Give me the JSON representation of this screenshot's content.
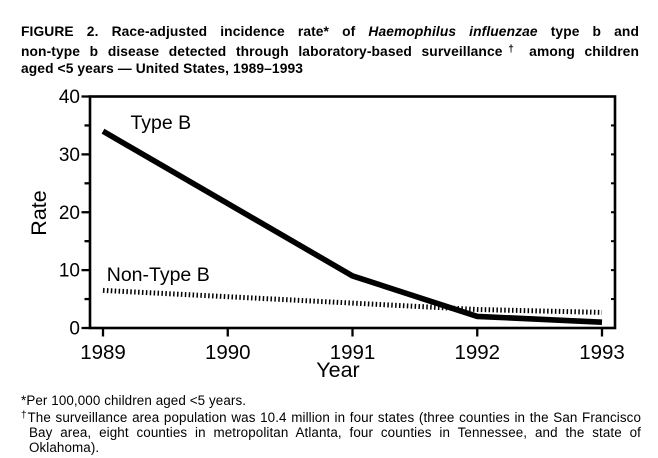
{
  "figure": {
    "title_lines": [
      [
        {
          "t": "FIGURE 2. Race-adjusted incidence rate* of "
        },
        {
          "t": "Haemophilus influenzae",
          "i": true
        },
        {
          "t": " type b and"
        }
      ],
      [
        {
          "t": "non-type b disease detected through laboratory-based surveillance"
        },
        {
          "t": "†",
          "sup": true
        },
        {
          "t": " among children"
        }
      ],
      [
        {
          "t": "aged <5 years — United States, 1989–1993"
        }
      ]
    ],
    "footnotes": [
      {
        "marker": "*",
        "sup": false,
        "text": "Per 100,000 children aged <5 years."
      },
      {
        "marker": "†",
        "sup": true,
        "text": "The surveillance area population was 10.4 million in four states (three counties in the San Francisco Bay area, eight counties in metropolitan Atlanta, four counties in Tennessee, and the state of Oklahoma)."
      }
    ]
  },
  "chart_data": {
    "type": "line",
    "title": "",
    "xlabel": "Year",
    "ylabel": "Rate",
    "x": [
      1989,
      1990,
      1991,
      1992,
      1993
    ],
    "series": [
      {
        "name": "Type B",
        "style": "solid-thick",
        "values": [
          34,
          21.5,
          9,
          2,
          1
        ]
      },
      {
        "name": "Non-Type B",
        "style": "dotted",
        "values": [
          6.5,
          5.4,
          4.3,
          3.2,
          2.7
        ]
      }
    ],
    "ylim": [
      0,
      40
    ],
    "yticks_labeled": [
      0,
      10,
      20,
      30,
      40
    ],
    "ytick_minor_interval": 5,
    "grid": false,
    "legend": "inline-labels",
    "annotations": [
      {
        "text": "Type B",
        "x": 1989.22,
        "y": 34.4
      },
      {
        "text": "Non-Type B",
        "x": 1989.03,
        "y": 8.1
      }
    ],
    "line_color": "#000000",
    "background": "#ffffff"
  }
}
